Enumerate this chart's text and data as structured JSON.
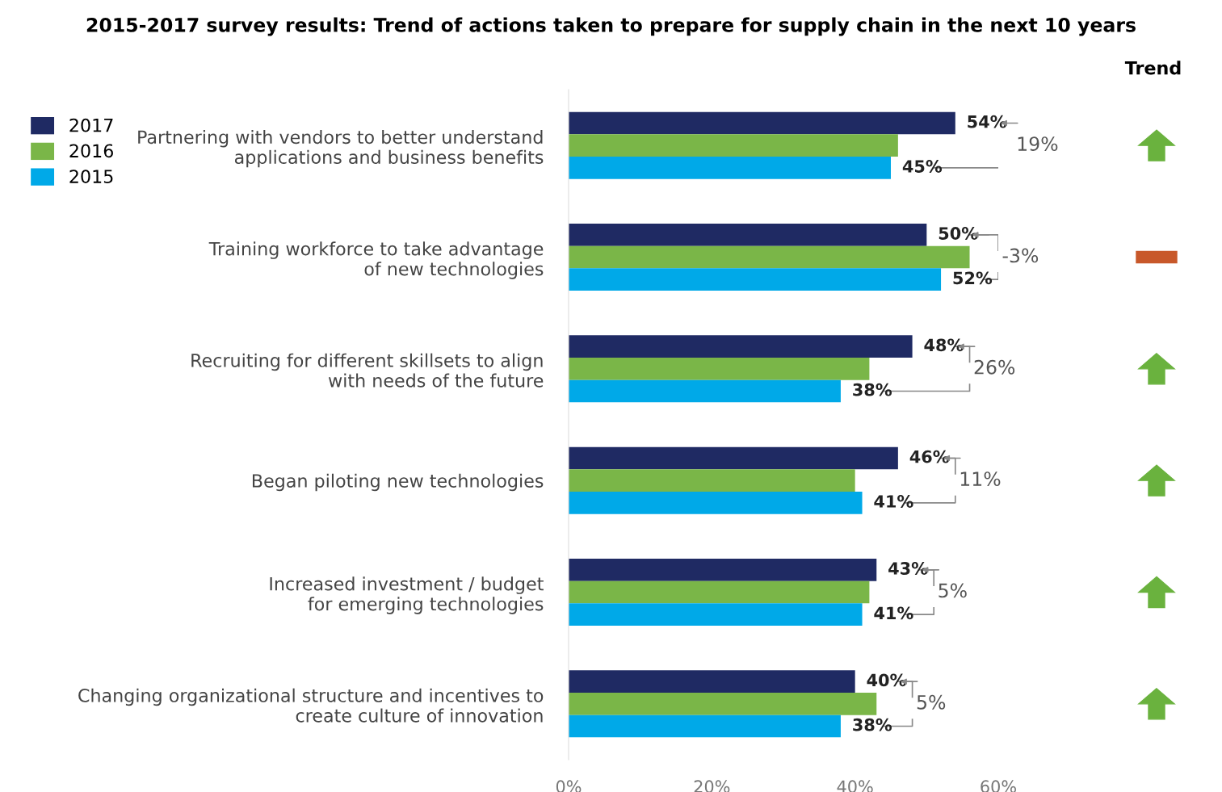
{
  "chart_data": {
    "type": "bar",
    "orientation": "horizontal",
    "title": "2015-2017 survey results: Trend of actions taken to prepare for supply chain in the next 10 years",
    "categories": [
      "Partnering with vendors to better understand\napplications and business benefits",
      "Training workforce to take advantage\nof new technologies",
      "Recruiting for different skillsets to align\nwith needs of the future",
      "Began piloting new technologies",
      "Increased investment / budget\nfor emerging technologies",
      "Changing organizational structure and incentives to\ncreate culture of innovation"
    ],
    "series": [
      {
        "name": "2017",
        "color": "#1f2a63",
        "values": [
          54,
          50,
          48,
          46,
          43,
          40
        ],
        "value_labels": [
          "54%",
          "50%",
          "48%",
          "46%",
          "43%",
          "40%"
        ]
      },
      {
        "name": "2016",
        "color": "#7ab648",
        "values": [
          46,
          56,
          42,
          40,
          42,
          43
        ]
      },
      {
        "name": "2015",
        "color": "#00a9e8",
        "values": [
          45,
          52,
          38,
          41,
          41,
          38
        ],
        "value_labels": [
          "45%",
          "52%",
          "38%",
          "41%",
          "41%",
          "38%"
        ]
      }
    ],
    "xlim": [
      0,
      60
    ],
    "xticks": [
      {
        "value": 0,
        "label": "0%"
      },
      {
        "value": 20,
        "label": "20%"
      },
      {
        "value": 40,
        "label": "40%"
      },
      {
        "value": 60,
        "label": "60%"
      }
    ],
    "annotations": [
      "Trend",
      "19%",
      "-3%",
      "26%",
      "11%",
      "5%",
      "5%"
    ],
    "legend": "top left",
    "grid": false
  }
}
